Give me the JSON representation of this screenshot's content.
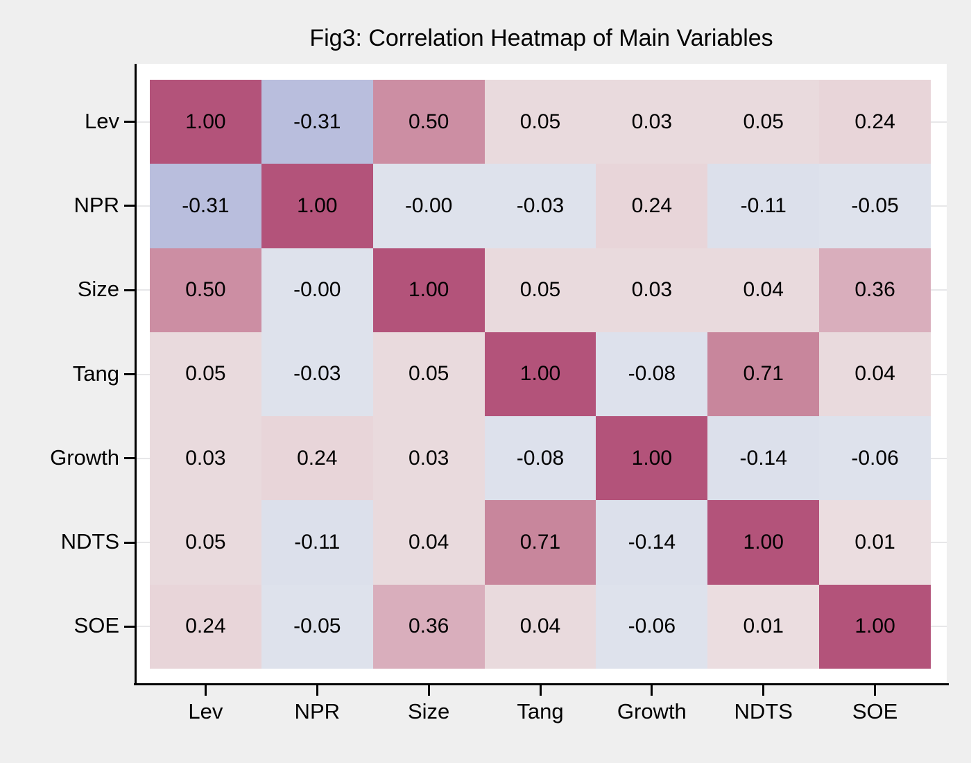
{
  "title": "Fig3: Correlation Heatmap of Main Variables",
  "colors": {
    "graph_background": "#efefef",
    "plot_background": "#ffffff",
    "axis_line": "#000000",
    "gridline": "#e7e7e9",
    "cell_text": "#000000",
    "title_text": "#000000"
  },
  "chart_data": {
    "type": "heatmap",
    "title": "Fig3: Correlation Heatmap of Main Variables",
    "rows": [
      "Lev",
      "NPR",
      "Size",
      "Tang",
      "Growth",
      "NDTS",
      "SOE"
    ],
    "columns": [
      "Lev",
      "NPR",
      "Size",
      "Tang",
      "Growth",
      "NDTS",
      "SOE"
    ],
    "matrix": [
      [
        "1.00",
        "-0.31",
        "0.50",
        "0.05",
        "0.03",
        "0.05",
        "0.24"
      ],
      [
        "-0.31",
        "1.00",
        "-0.00",
        "-0.03",
        "0.24",
        "-0.11",
        "-0.05"
      ],
      [
        "0.50",
        "-0.00",
        "1.00",
        "0.05",
        "0.03",
        "0.04",
        "0.36"
      ],
      [
        "0.05",
        "-0.03",
        "0.05",
        "1.00",
        "-0.08",
        "0.71",
        "0.04"
      ],
      [
        "0.03",
        "0.24",
        "0.03",
        "-0.08",
        "1.00",
        "-0.14",
        "-0.06"
      ],
      [
        "0.05",
        "-0.11",
        "0.04",
        "0.71",
        "-0.14",
        "1.00",
        "0.01"
      ],
      [
        "0.24",
        "-0.05",
        "0.36",
        "0.04",
        "-0.06",
        "0.01",
        "1.00"
      ]
    ],
    "value_colors": {
      "1.00": "#b3537a",
      "0.71": "#c8869c",
      "0.50": "#cc8ea3",
      "0.36": "#d9aebc",
      "0.24": "#e8d5d9",
      "0.05": "#e9dadd",
      "0.04": "#e9dadd",
      "0.03": "#e9dadd",
      "0.01": "#ebdde0",
      "-0.00": "#dee2ec",
      "-0.03": "#dee2ec",
      "-0.05": "#dee2ec",
      "-0.06": "#dee2ec",
      "-0.08": "#dde1ec",
      "-0.11": "#dce0eb",
      "-0.14": "#dce0eb",
      "-0.31": "#b9bedd"
    },
    "legend": "none",
    "grid": "horizontal-light"
  }
}
